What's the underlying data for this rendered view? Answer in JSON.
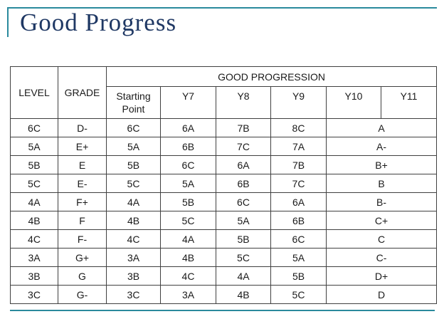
{
  "page": {
    "title": "Good Progress",
    "accent_color": "#2A8A9D",
    "title_color": "#1F3864"
  },
  "table": {
    "header": {
      "level": "LEVEL",
      "grade": "GRADE",
      "group": "GOOD PROGRESSION",
      "sub_columns": [
        "Starting Point",
        "Y7",
        "Y8",
        "Y9",
        "Y10",
        "Y11"
      ]
    },
    "rows": [
      [
        "6C",
        "D-",
        "6C",
        "6A",
        "7B",
        "8C",
        "A"
      ],
      [
        "5A",
        "E+",
        "5A",
        "6B",
        "7C",
        "7A",
        "A-"
      ],
      [
        "5B",
        "E",
        "5B",
        "6C",
        "6A",
        "7B",
        "B+"
      ],
      [
        "5C",
        "E-",
        "5C",
        "5A",
        "6B",
        "7C",
        "B"
      ],
      [
        "4A",
        "F+",
        "4A",
        "5B",
        "6C",
        "6A",
        "B-"
      ],
      [
        "4B",
        "F",
        "4B",
        "5C",
        "5A",
        "6B",
        "C+"
      ],
      [
        "4C",
        "F-",
        "4C",
        "4A",
        "5B",
        "6C",
        "C"
      ],
      [
        "3A",
        "G+",
        "3A",
        "4B",
        "5C",
        "5A",
        "C-"
      ],
      [
        "3B",
        "G",
        "3B",
        "4C",
        "4A",
        "5B",
        "D+"
      ],
      [
        "3C",
        "G-",
        "3C",
        "3A",
        "4B",
        "5C",
        "D"
      ]
    ]
  }
}
